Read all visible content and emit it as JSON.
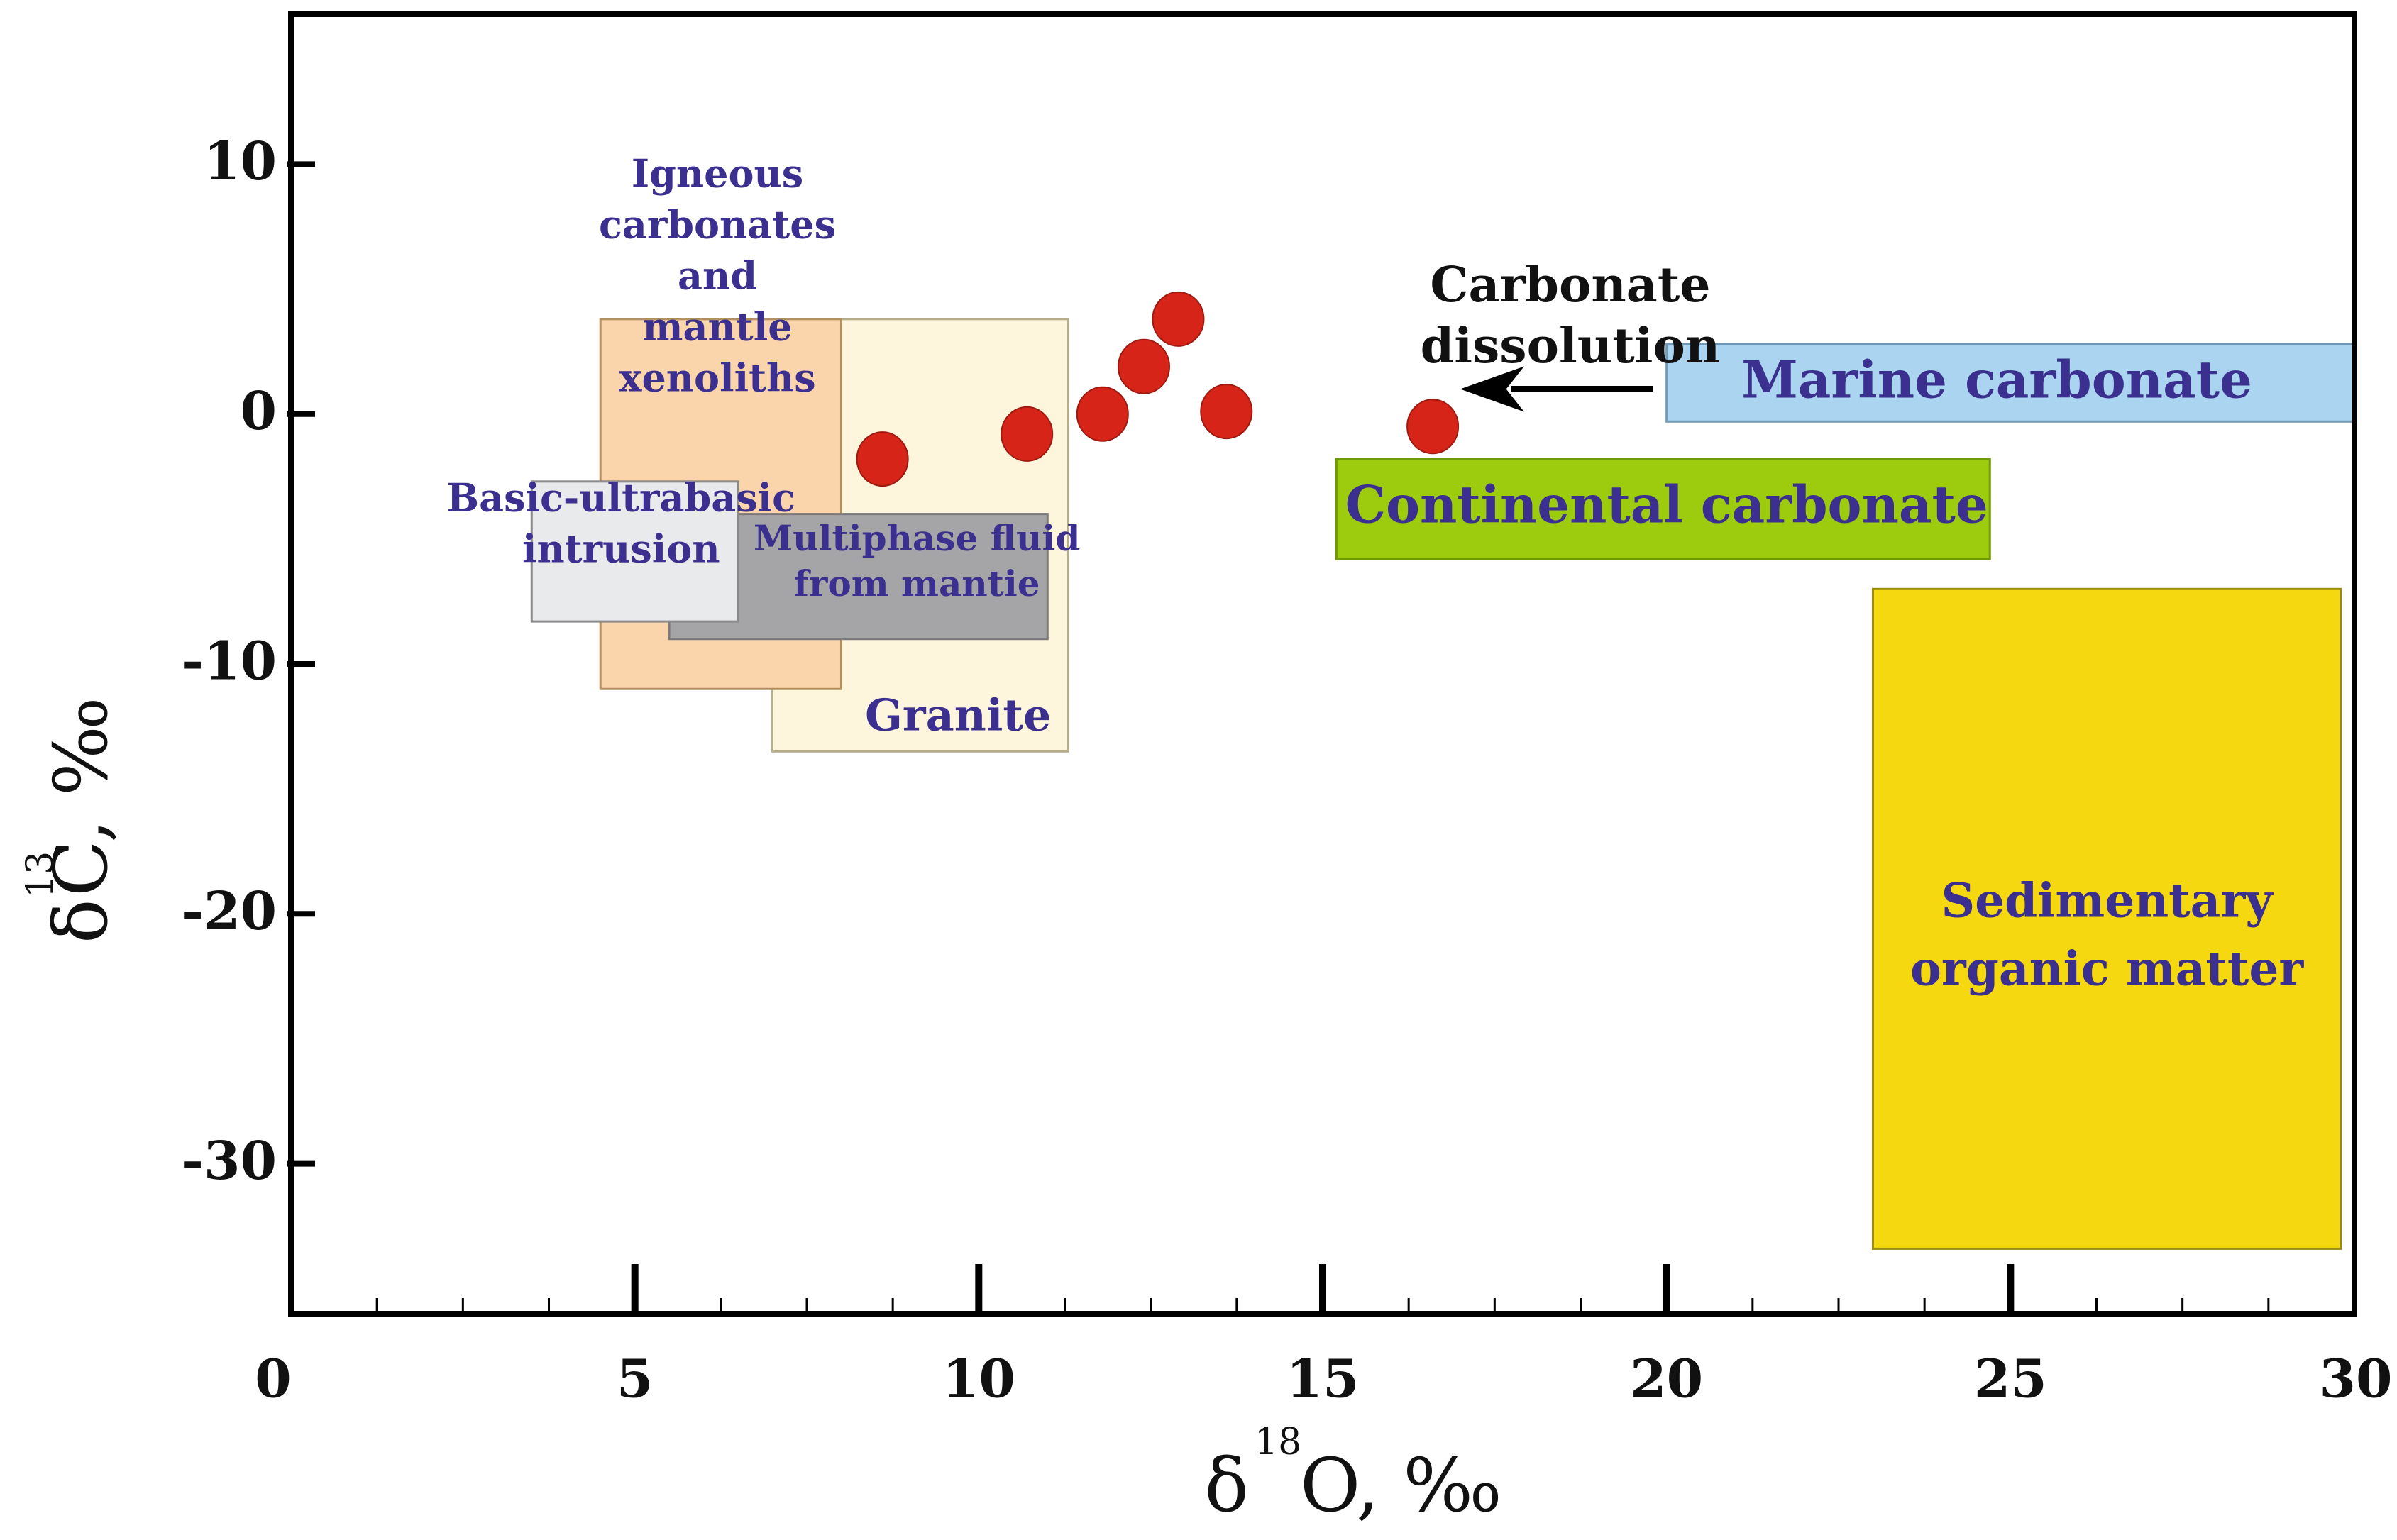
{
  "chart_data": {
    "type": "scatter",
    "title": "",
    "xlabel": {
      "prefix": "δ",
      "sup": "18",
      "suffix": "O, ‰"
    },
    "ylabel": {
      "prefix": "δ",
      "sup": "13",
      "suffix": "C, ‰"
    },
    "xlim": [
      0,
      30
    ],
    "ylim": [
      -36,
      16
    ],
    "xticks": [
      0,
      5,
      10,
      15,
      20,
      25,
      30
    ],
    "yticks": [
      10,
      0,
      -10,
      -20,
      -30
    ],
    "ytick_labels": [
      "10",
      "0",
      "-10",
      "-20",
      "-30"
    ],
    "x_minor_step": 1.25,
    "grid": false,
    "series": [
      {
        "name": "samples",
        "color": "#d62418",
        "points": [
          {
            "x": 8.6,
            "y": -1.8
          },
          {
            "x": 10.7,
            "y": -0.8
          },
          {
            "x": 11.8,
            "y": 0.0
          },
          {
            "x": 12.4,
            "y": 1.9
          },
          {
            "x": 12.9,
            "y": 3.8
          },
          {
            "x": 13.6,
            "y": 0.1
          },
          {
            "x": 16.6,
            "y": -0.5
          }
        ]
      }
    ],
    "regions": [
      {
        "id": "granite",
        "label_lines": [
          "Granite"
        ],
        "x": [
          7,
          11.3
        ],
        "y": [
          -13.5,
          3.8
        ],
        "fill": "#fdf6dc",
        "stroke": "#b8ad8a",
        "text_color": "#3b2f8f",
        "label_at": {
          "x": 9.7,
          "y": -12.2
        }
      },
      {
        "id": "igneous",
        "label_lines": [
          "Igneous",
          "carbonates",
          "and",
          "mantle",
          "xenoliths"
        ],
        "x": [
          4.5,
          8
        ],
        "y": [
          -11,
          3.8
        ],
        "fill": "#fad4ab",
        "stroke": "#b39060",
        "text_color": "#3b2f8f",
        "label_at": {
          "x": 6.2,
          "y": 5.4
        }
      },
      {
        "id": "multiphase",
        "label_lines": [
          "Multiphase fluid",
          "from mantie"
        ],
        "x": [
          5.5,
          11
        ],
        "y": [
          -9,
          -4
        ],
        "fill": "#a5a5a7",
        "stroke": "#7a7a7c",
        "text_color": "#3b2f8f",
        "label_at": {
          "x": 9.1,
          "y": -6.0
        }
      },
      {
        "id": "basic",
        "label_lines": [
          "Basic-ultrabasic",
          "intrusion"
        ],
        "x": [
          3.5,
          6.5
        ],
        "y": [
          -8.3,
          -2.7
        ],
        "fill": "#e9eaec",
        "stroke": "#8a8a8a",
        "text_color": "#3b2f8f",
        "label_at": {
          "x": 4.8,
          "y": -4.5
        }
      },
      {
        "id": "marine",
        "label_lines": [
          "Marine carbonate"
        ],
        "x": [
          20,
          30
        ],
        "y": [
          -0.3,
          2.8
        ],
        "fill": "#aad4ef",
        "stroke": "#6e9ab8",
        "text_color": "#3b2f8f",
        "label_at": {
          "x": 24.8,
          "y": 1.2
        }
      },
      {
        "id": "continental",
        "label_lines": [
          "Continental carbonate"
        ],
        "x": [
          15.2,
          24.7
        ],
        "y": [
          -5.8,
          -1.8
        ],
        "fill": "#9dcc0f",
        "stroke": "#6e9a05",
        "text_color": "#3b2f8f",
        "label_at": {
          "x": 20.0,
          "y": -3.8
        }
      },
      {
        "id": "sedimentary",
        "label_lines": [
          "Sedimentary",
          "organic matter"
        ],
        "x": [
          23,
          29.8
        ],
        "y": [
          -33.4,
          -7.0
        ],
        "fill": "#f5d80f",
        "stroke": "#9a8a10",
        "text_color": "#3b2f8f",
        "label_at": {
          "x": 26.4,
          "y": -21.0
        }
      }
    ],
    "annotations": [
      {
        "id": "dissolution",
        "lines": [
          "Carbonate",
          "dissolution"
        ],
        "at": {
          "x": 18.6,
          "y": 5.0
        },
        "color": "#111111"
      }
    ],
    "arrows": [
      {
        "id": "dissolution-arrow",
        "from": {
          "x": 19.8,
          "y": 1.0
        },
        "to": {
          "x": 17.0,
          "y": 1.0
        },
        "color": "#000000"
      }
    ]
  }
}
